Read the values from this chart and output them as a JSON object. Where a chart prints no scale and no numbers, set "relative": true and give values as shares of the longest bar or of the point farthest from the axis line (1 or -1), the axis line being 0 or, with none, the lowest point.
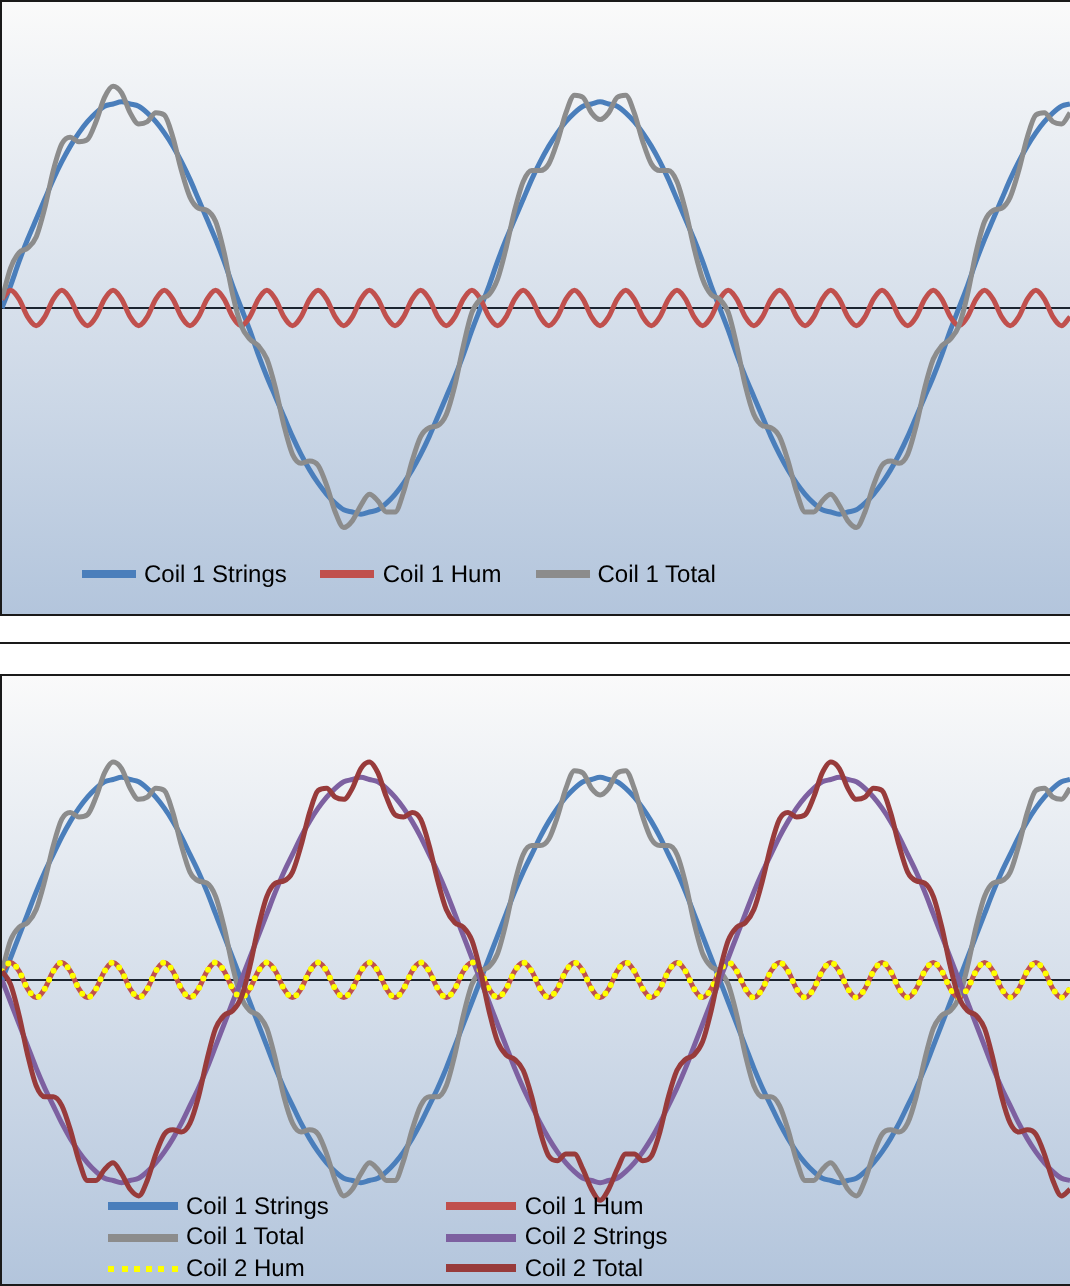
{
  "chart_data": [
    {
      "type": "line",
      "relative": true,
      "legend": "bottom left",
      "marker": "none",
      "categories": [
        null,
        null,
        null,
        null,
        null,
        null,
        null,
        null,
        null,
        null,
        null,
        null,
        null,
        null,
        null,
        null,
        null,
        null,
        null,
        null,
        null,
        null,
        null,
        null,
        null,
        null,
        null,
        null,
        null,
        null,
        null,
        null,
        null,
        null,
        null,
        null,
        null,
        null,
        null,
        null,
        null,
        null,
        null,
        null,
        null,
        null,
        null,
        null,
        null,
        null,
        null,
        null,
        null,
        null,
        null,
        null,
        null,
        null,
        null,
        null,
        null,
        null,
        null,
        null,
        null,
        null,
        null,
        null,
        null,
        null,
        null,
        null,
        null,
        null,
        null,
        null,
        null,
        null,
        null,
        null,
        null,
        null,
        null,
        null,
        null,
        null,
        null,
        null,
        null,
        null,
        null,
        null,
        null,
        null,
        null,
        null,
        null,
        null,
        null,
        null,
        null,
        null,
        null,
        null,
        null,
        null,
        null,
        null,
        null,
        null,
        null,
        null,
        null,
        null,
        null,
        null,
        null,
        null,
        null,
        null,
        null,
        null,
        null,
        null,
        null,
        null
      ],
      "series": [
        {
          "name": "Coil 1 Strings",
          "color": "#4a7ebb",
          "values": [
            0,
            0.1,
            0.21,
            0.31,
            0.4,
            0.49,
            0.58,
            0.66,
            0.73,
            0.79,
            0.84,
            0.88,
            0.91,
            0.92,
            0.93,
            0.92,
            0.91,
            0.88,
            0.84,
            0.79,
            0.73,
            0.66,
            0.58,
            0.49,
            0.4,
            0.31,
            0.21,
            0.1,
            0,
            -0.1,
            -0.21,
            -0.31,
            -0.4,
            -0.49,
            -0.58,
            -0.66,
            -0.73,
            -0.79,
            -0.84,
            -0.88,
            -0.91,
            -0.92,
            -0.93,
            -0.92,
            -0.91,
            -0.88,
            -0.84,
            -0.79,
            -0.73,
            -0.66,
            -0.58,
            -0.49,
            -0.4,
            -0.31,
            -0.21,
            -0.1,
            0,
            0.1,
            0.21,
            0.31,
            0.4,
            0.49,
            0.58,
            0.66,
            0.73,
            0.79,
            0.84,
            0.88,
            0.91,
            0.92,
            0.93,
            0.92,
            0.91,
            0.88,
            0.84,
            0.79,
            0.73,
            0.66,
            0.58,
            0.49,
            0.4,
            0.31,
            0.21,
            0.1,
            0,
            -0.1,
            -0.21,
            -0.31,
            -0.4,
            -0.49,
            -0.58,
            -0.66,
            -0.73,
            -0.79,
            -0.84,
            -0.88,
            -0.91,
            -0.92,
            -0.93,
            -0.92,
            -0.91,
            -0.88,
            -0.84,
            -0.79,
            -0.73,
            -0.66,
            -0.58,
            -0.49,
            -0.4,
            -0.31,
            -0.21,
            -0.1,
            0,
            0.1,
            0.21,
            0.31,
            0.4,
            0.49,
            0.58,
            0.66,
            0.73,
            0.79,
            0.84,
            0.88,
            0.91,
            0.92
          ]
        },
        {
          "name": "Coil 1 Hum",
          "color": "#c0504d",
          "values": [
            0.04,
            0.08,
            0.04,
            -0.04,
            -0.08,
            -0.04,
            0.04,
            0.08,
            0.04,
            -0.04,
            -0.08,
            -0.04,
            0.04,
            0.08,
            0.04,
            -0.04,
            -0.08,
            -0.04,
            0.04,
            0.08,
            0.04,
            -0.04,
            -0.08,
            -0.04,
            0.04,
            0.08,
            0.04,
            -0.04,
            -0.08,
            -0.04,
            0.04,
            0.08,
            0.04,
            -0.04,
            -0.08,
            -0.04,
            0.04,
            0.08,
            0.04,
            -0.04,
            -0.08,
            -0.04,
            0.04,
            0.08,
            0.04,
            -0.04,
            -0.08,
            -0.04,
            0.04,
            0.08,
            0.04,
            -0.04,
            -0.08,
            -0.04,
            0.04,
            0.08,
            0.04,
            -0.04,
            -0.08,
            -0.04,
            0.04,
            0.08,
            0.04,
            -0.04,
            -0.08,
            -0.04,
            0.04,
            0.08,
            0.04,
            -0.04,
            -0.08,
            -0.04,
            0.04,
            0.08,
            0.04,
            -0.04,
            -0.08,
            -0.04,
            0.04,
            0.08,
            0.04,
            -0.04,
            -0.08,
            -0.04,
            0.04,
            0.08,
            0.04,
            -0.04,
            -0.08,
            -0.04,
            0.04,
            0.08,
            0.04,
            -0.04,
            -0.08,
            -0.04,
            0.04,
            0.08,
            0.04,
            -0.04,
            -0.08,
            -0.04,
            0.04,
            0.08,
            0.04,
            -0.04,
            -0.08,
            -0.04,
            0.04,
            0.08,
            0.04,
            -0.04,
            -0.08,
            -0.04,
            0.04,
            0.08,
            0.04,
            -0.04,
            -0.08,
            -0.04,
            0.04,
            0.08,
            0.04,
            -0.04,
            -0.08,
            -0.04
          ]
        },
        {
          "name": "Coil 1 Total",
          "color": "#8c8c8c",
          "values": [
            0.04,
            0.18,
            0.25,
            0.27,
            0.32,
            0.45,
            0.62,
            0.74,
            0.77,
            0.75,
            0.76,
            0.84,
            0.95,
            1,
            0.97,
            0.88,
            0.83,
            0.84,
            0.88,
            0.87,
            0.77,
            0.62,
            0.5,
            0.45,
            0.44,
            0.39,
            0.25,
            0.06,
            -0.08,
            -0.14,
            -0.17,
            -0.23,
            -0.36,
            -0.53,
            -0.66,
            -0.7,
            -0.69,
            -0.71,
            -0.8,
            -0.92,
            -0.99,
            -0.96,
            -0.89,
            -0.84,
            -0.87,
            -0.92,
            -0.92,
            -0.83,
            -0.69,
            -0.58,
            -0.54,
            -0.53,
            -0.48,
            -0.35,
            -0.17,
            -0.02,
            0.04,
            0.06,
            0.13,
            0.27,
            0.44,
            0.57,
            0.62,
            0.62,
            0.65,
            0.75,
            0.88,
            0.96,
            0.95,
            0.88,
            0.85,
            0.88,
            0.95,
            0.96,
            0.88,
            0.75,
            0.65,
            0.62,
            0.62,
            0.57,
            0.44,
            0.27,
            0.13,
            0.06,
            0.04,
            -0.02,
            -0.17,
            -0.35,
            -0.48,
            -0.53,
            -0.54,
            -0.58,
            -0.69,
            -0.83,
            -0.92,
            -0.92,
            -0.87,
            -0.84,
            -0.89,
            -0.96,
            -0.99,
            -0.92,
            -0.8,
            -0.71,
            -0.69,
            -0.7,
            -0.66,
            -0.53,
            -0.36,
            -0.23,
            -0.17,
            -0.14,
            -0.08,
            0.06,
            0.25,
            0.39,
            0.44,
            0.45,
            0.5,
            0.62,
            0.77,
            0.87,
            0.88,
            0.84,
            0.83,
            0.88
          ]
        }
      ]
    },
    {
      "type": "line",
      "relative": true,
      "legend": "bottom left",
      "marker": "none",
      "categories": [
        null,
        null,
        null,
        null,
        null,
        null,
        null,
        null,
        null,
        null,
        null,
        null,
        null,
        null,
        null,
        null,
        null,
        null,
        null,
        null,
        null,
        null,
        null,
        null,
        null,
        null,
        null,
        null,
        null,
        null,
        null,
        null,
        null,
        null,
        null,
        null,
        null,
        null,
        null,
        null,
        null,
        null,
        null,
        null,
        null,
        null,
        null,
        null,
        null,
        null,
        null,
        null,
        null,
        null,
        null,
        null,
        null,
        null,
        null,
        null,
        null,
        null,
        null,
        null,
        null,
        null,
        null,
        null,
        null,
        null,
        null,
        null,
        null,
        null,
        null,
        null,
        null,
        null,
        null,
        null,
        null,
        null,
        null,
        null,
        null,
        null,
        null,
        null,
        null,
        null,
        null,
        null,
        null,
        null,
        null,
        null,
        null,
        null,
        null,
        null,
        null,
        null,
        null,
        null,
        null,
        null,
        null,
        null,
        null,
        null,
        null,
        null,
        null,
        null,
        null,
        null,
        null,
        null,
        null,
        null,
        null,
        null,
        null,
        null,
        null,
        null
      ],
      "series": [
        {
          "name": "Coil 1 Strings",
          "color": "#4a7ebb",
          "values": [
            0,
            0.1,
            0.2,
            0.3,
            0.4,
            0.49,
            0.57,
            0.65,
            0.72,
            0.78,
            0.83,
            0.87,
            0.9,
            0.91,
            0.92,
            0.91,
            0.9,
            0.87,
            0.83,
            0.78,
            0.72,
            0.65,
            0.57,
            0.49,
            0.4,
            0.3,
            0.2,
            0.1,
            0,
            -0.1,
            -0.2,
            -0.3,
            -0.4,
            -0.49,
            -0.57,
            -0.65,
            -0.72,
            -0.78,
            -0.83,
            -0.87,
            -0.9,
            -0.91,
            -0.92,
            -0.91,
            -0.9,
            -0.87,
            -0.83,
            -0.78,
            -0.72,
            -0.65,
            -0.57,
            -0.49,
            -0.4,
            -0.3,
            -0.2,
            -0.1,
            0,
            0.1,
            0.2,
            0.3,
            0.4,
            0.49,
            0.57,
            0.65,
            0.72,
            0.78,
            0.83,
            0.87,
            0.9,
            0.91,
            0.92,
            0.91,
            0.9,
            0.87,
            0.83,
            0.78,
            0.72,
            0.65,
            0.57,
            0.49,
            0.4,
            0.3,
            0.2,
            0.1,
            0,
            -0.1,
            -0.2,
            -0.3,
            -0.4,
            -0.49,
            -0.57,
            -0.65,
            -0.72,
            -0.78,
            -0.83,
            -0.87,
            -0.9,
            -0.91,
            -0.92,
            -0.91,
            -0.9,
            -0.87,
            -0.83,
            -0.78,
            -0.72,
            -0.65,
            -0.57,
            -0.49,
            -0.4,
            -0.3,
            -0.2,
            -0.1,
            0,
            0.1,
            0.2,
            0.3,
            0.4,
            0.49,
            0.57,
            0.65,
            0.72,
            0.78,
            0.83,
            0.87,
            0.9,
            0.91
          ]
        },
        {
          "name": "Coil 1 Hum",
          "color": "#c0504d",
          "values": [
            0.04,
            0.08,
            0.04,
            -0.04,
            -0.08,
            -0.04,
            0.04,
            0.08,
            0.04,
            -0.04,
            -0.08,
            -0.04,
            0.04,
            0.08,
            0.04,
            -0.04,
            -0.08,
            -0.04,
            0.04,
            0.08,
            0.04,
            -0.04,
            -0.08,
            -0.04,
            0.04,
            0.08,
            0.04,
            -0.04,
            -0.08,
            -0.04,
            0.04,
            0.08,
            0.04,
            -0.04,
            -0.08,
            -0.04,
            0.04,
            0.08,
            0.04,
            -0.04,
            -0.08,
            -0.04,
            0.04,
            0.08,
            0.04,
            -0.04,
            -0.08,
            -0.04,
            0.04,
            0.08,
            0.04,
            -0.04,
            -0.08,
            -0.04,
            0.04,
            0.08,
            0.04,
            -0.04,
            -0.08,
            -0.04,
            0.04,
            0.08,
            0.04,
            -0.04,
            -0.08,
            -0.04,
            0.04,
            0.08,
            0.04,
            -0.04,
            -0.08,
            -0.04,
            0.04,
            0.08,
            0.04,
            -0.04,
            -0.08,
            -0.04,
            0.04,
            0.08,
            0.04,
            -0.04,
            -0.08,
            -0.04,
            0.04,
            0.08,
            0.04,
            -0.04,
            -0.08,
            -0.04,
            0.04,
            0.08,
            0.04,
            -0.04,
            -0.08,
            -0.04,
            0.04,
            0.08,
            0.04,
            -0.04,
            -0.08,
            -0.04,
            0.04,
            0.08,
            0.04,
            -0.04,
            -0.08,
            -0.04,
            0.04,
            0.08,
            0.04,
            -0.04,
            -0.08,
            -0.04,
            0.04,
            0.08,
            0.04,
            -0.04,
            -0.08,
            -0.04,
            0.04,
            0.08,
            0.04,
            -0.04,
            -0.08,
            -0.04
          ]
        },
        {
          "name": "Coil 1 Total",
          "color": "#8c8c8c",
          "values": [
            0.04,
            0.18,
            0.24,
            0.26,
            0.32,
            0.45,
            0.61,
            0.73,
            0.76,
            0.74,
            0.75,
            0.83,
            0.94,
            0.99,
            0.96,
            0.87,
            0.82,
            0.83,
            0.87,
            0.86,
            0.76,
            0.61,
            0.49,
            0.45,
            0.44,
            0.38,
            0.24,
            0.06,
            -0.08,
            -0.14,
            -0.16,
            -0.22,
            -0.36,
            -0.53,
            -0.65,
            -0.69,
            -0.68,
            -0.7,
            -0.79,
            -0.91,
            -0.98,
            -0.95,
            -0.88,
            -0.83,
            -0.86,
            -0.91,
            -0.91,
            -0.82,
            -0.68,
            -0.57,
            -0.53,
            -0.53,
            -0.48,
            -0.34,
            -0.16,
            -0.02,
            0.04,
            0.06,
            0.12,
            0.26,
            0.44,
            0.57,
            0.61,
            0.61,
            0.64,
            0.74,
            0.87,
            0.95,
            0.94,
            0.87,
            0.84,
            0.87,
            0.94,
            0.95,
            0.87,
            0.74,
            0.64,
            0.61,
            0.61,
            0.57,
            0.44,
            0.26,
            0.12,
            0.06,
            0.04,
            -0.02,
            -0.16,
            -0.34,
            -0.48,
            -0.53,
            -0.53,
            -0.57,
            -0.68,
            -0.82,
            -0.91,
            -0.91,
            -0.86,
            -0.83,
            -0.88,
            -0.95,
            -0.98,
            -0.91,
            -0.79,
            -0.7,
            -0.68,
            -0.69,
            -0.65,
            -0.53,
            -0.36,
            -0.22,
            -0.16,
            -0.14,
            -0.08,
            0.06,
            0.24,
            0.38,
            0.44,
            0.45,
            0.49,
            0.61,
            0.76,
            0.86,
            0.87,
            0.83,
            0.82,
            0.87
          ]
        },
        {
          "name": "Coil 2 Strings",
          "color": "#7d60a0",
          "values": [
            0,
            -0.1,
            -0.2,
            -0.3,
            -0.4,
            -0.49,
            -0.57,
            -0.65,
            -0.72,
            -0.78,
            -0.83,
            -0.87,
            -0.9,
            -0.91,
            -0.92,
            -0.91,
            -0.9,
            -0.87,
            -0.83,
            -0.78,
            -0.72,
            -0.65,
            -0.57,
            -0.49,
            -0.4,
            -0.3,
            -0.2,
            -0.1,
            0,
            0.1,
            0.2,
            0.3,
            0.4,
            0.49,
            0.57,
            0.65,
            0.72,
            0.78,
            0.83,
            0.87,
            0.9,
            0.91,
            0.92,
            0.91,
            0.9,
            0.87,
            0.83,
            0.78,
            0.72,
            0.65,
            0.57,
            0.49,
            0.4,
            0.3,
            0.2,
            0.1,
            0,
            -0.1,
            -0.2,
            -0.3,
            -0.4,
            -0.49,
            -0.57,
            -0.65,
            -0.72,
            -0.78,
            -0.83,
            -0.87,
            -0.9,
            -0.91,
            -0.92,
            -0.91,
            -0.9,
            -0.87,
            -0.83,
            -0.78,
            -0.72,
            -0.65,
            -0.57,
            -0.49,
            -0.4,
            -0.3,
            -0.2,
            -0.1,
            0,
            0.1,
            0.2,
            0.3,
            0.4,
            0.49,
            0.57,
            0.65,
            0.72,
            0.78,
            0.83,
            0.87,
            0.9,
            0.91,
            0.92,
            0.91,
            0.9,
            0.87,
            0.83,
            0.78,
            0.72,
            0.65,
            0.57,
            0.49,
            0.4,
            0.3,
            0.2,
            0.1,
            0,
            -0.1,
            -0.2,
            -0.3,
            -0.4,
            -0.49,
            -0.57,
            -0.65,
            -0.72,
            -0.78,
            -0.83,
            -0.87,
            -0.9,
            -0.91
          ]
        },
        {
          "name": "Coil 2 Hum",
          "color": "#ffff00",
          "line_style": "dotted",
          "values": [
            0.04,
            0.08,
            0.04,
            -0.04,
            -0.08,
            -0.04,
            0.04,
            0.08,
            0.04,
            -0.04,
            -0.08,
            -0.04,
            0.04,
            0.08,
            0.04,
            -0.04,
            -0.08,
            -0.04,
            0.04,
            0.08,
            0.04,
            -0.04,
            -0.08,
            -0.04,
            0.04,
            0.08,
            0.04,
            -0.04,
            -0.08,
            -0.04,
            0.04,
            0.08,
            0.04,
            -0.04,
            -0.08,
            -0.04,
            0.04,
            0.08,
            0.04,
            -0.04,
            -0.08,
            -0.04,
            0.04,
            0.08,
            0.04,
            -0.04,
            -0.08,
            -0.04,
            0.04,
            0.08,
            0.04,
            -0.04,
            -0.08,
            -0.04,
            0.04,
            0.08,
            0.04,
            -0.04,
            -0.08,
            -0.04,
            0.04,
            0.08,
            0.04,
            -0.04,
            -0.08,
            -0.04,
            0.04,
            0.08,
            0.04,
            -0.04,
            -0.08,
            -0.04,
            0.04,
            0.08,
            0.04,
            -0.04,
            -0.08,
            -0.04,
            0.04,
            0.08,
            0.04,
            -0.04,
            -0.08,
            -0.04,
            0.04,
            0.08,
            0.04,
            -0.04,
            -0.08,
            -0.04,
            0.04,
            0.08,
            0.04,
            -0.04,
            -0.08,
            -0.04,
            0.04,
            0.08,
            0.04,
            -0.04,
            -0.08,
            -0.04,
            0.04,
            0.08,
            0.04,
            -0.04,
            -0.08,
            -0.04,
            0.04,
            0.08,
            0.04,
            -0.04,
            -0.08,
            -0.04,
            0.04,
            0.08,
            0.04,
            -0.04,
            -0.08,
            -0.04,
            0.04,
            0.08,
            0.04,
            -0.04,
            -0.08,
            -0.04
          ]
        },
        {
          "name": "Coil 2 Total",
          "color": "#983b3b",
          "values": [
            0.04,
            -0.02,
            -0.16,
            -0.34,
            -0.48,
            -0.53,
            -0.53,
            -0.57,
            -0.68,
            -0.82,
            -0.91,
            -0.91,
            -0.86,
            -0.83,
            -0.88,
            -0.95,
            -0.98,
            -0.91,
            -0.79,
            -0.7,
            -0.68,
            -0.69,
            -0.65,
            -0.53,
            -0.36,
            -0.22,
            -0.16,
            -0.14,
            -0.08,
            0.06,
            0.24,
            0.38,
            0.44,
            0.45,
            0.49,
            0.61,
            0.76,
            0.86,
            0.87,
            0.83,
            0.82,
            0.87,
            0.96,
            0.99,
            0.94,
            0.83,
            0.75,
            0.74,
            0.76,
            0.73,
            0.61,
            0.45,
            0.32,
            0.26,
            0.24,
            0.18,
            0.04,
            -0.14,
            -0.28,
            -0.34,
            -0.36,
            -0.41,
            -0.53,
            -0.69,
            -0.8,
            -0.82,
            -0.79,
            -0.79,
            -0.86,
            -0.95,
            -1,
            -0.95,
            -0.86,
            -0.79,
            -0.79,
            -0.82,
            -0.8,
            -0.69,
            -0.53,
            -0.41,
            -0.36,
            -0.34,
            -0.28,
            -0.14,
            0.04,
            0.18,
            0.24,
            0.26,
            0.32,
            0.45,
            0.61,
            0.73,
            0.76,
            0.74,
            0.75,
            0.83,
            0.94,
            0.99,
            0.96,
            0.87,
            0.82,
            0.83,
            0.87,
            0.86,
            0.76,
            0.61,
            0.49,
            0.45,
            0.44,
            0.38,
            0.24,
            0.06,
            -0.08,
            -0.14,
            -0.16,
            -0.22,
            -0.36,
            -0.53,
            -0.65,
            -0.69,
            -0.68,
            -0.7,
            -0.79,
            -0.91,
            -0.98,
            -0.95
          ]
        }
      ]
    }
  ]
}
